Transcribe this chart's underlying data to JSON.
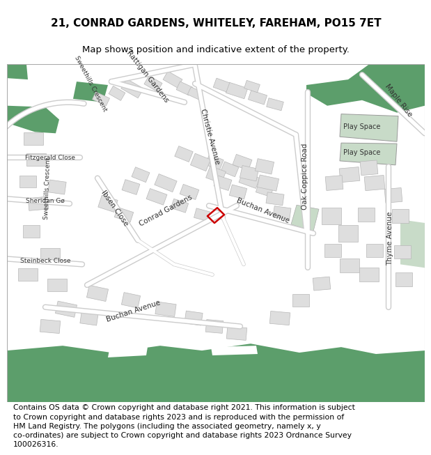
{
  "title_line1": "21, CONRAD GARDENS, WHITELEY, FAREHAM, PO15 7ET",
  "title_line2": "Map shows position and indicative extent of the property.",
  "footer_text": "Contains OS data © Crown copyright and database right 2021. This information is subject\nto Crown copyright and database rights 2023 and is reproduced with the permission of\nHM Land Registry. The polygons (including the associated geometry, namely x, y\nco-ordinates) are subject to Crown copyright and database rights 2023 Ordnance Survey\n100026316.",
  "bg_color": "#ffffff",
  "map_bg": "#f0f0f0",
  "building_color": "#dedede",
  "building_edge": "#b8b8b8",
  "green_color": "#5c9e6b",
  "light_green": "#c8dbc8",
  "road_color": "#ffffff",
  "road_edge": "#cccccc",
  "highlight_color": "#cc0000",
  "title_fontsize": 11,
  "subtitle_fontsize": 9.5,
  "footer_fontsize": 7.8
}
